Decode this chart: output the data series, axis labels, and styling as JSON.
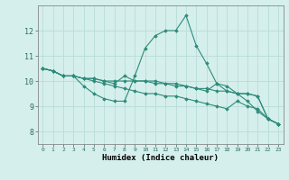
{
  "title": "",
  "xlabel": "Humidex (Indice chaleur)",
  "ylabel": "",
  "background_color": "#d5efec",
  "grid_color": "#b8ddd8",
  "line_color": "#2e8b7a",
  "xlim": [
    -0.5,
    23.5
  ],
  "ylim": [
    7.5,
    13.0
  ],
  "x_ticks": [
    0,
    1,
    2,
    3,
    4,
    5,
    6,
    7,
    8,
    9,
    10,
    11,
    12,
    13,
    14,
    15,
    16,
    17,
    18,
    19,
    20,
    21,
    22,
    23
  ],
  "y_ticks": [
    8,
    9,
    10,
    11,
    12
  ],
  "series": [
    [
      10.5,
      10.4,
      10.2,
      10.2,
      9.8,
      9.5,
      9.3,
      9.2,
      9.2,
      10.2,
      11.3,
      11.8,
      12.0,
      12.0,
      12.6,
      11.4,
      10.7,
      9.9,
      9.8,
      9.5,
      9.2,
      8.8,
      8.5,
      8.3
    ],
    [
      10.5,
      10.4,
      10.2,
      10.2,
      10.1,
      10.1,
      10.0,
      10.0,
      10.0,
      10.0,
      10.0,
      10.0,
      9.9,
      9.9,
      9.8,
      9.7,
      9.7,
      9.6,
      9.6,
      9.5,
      9.5,
      9.4,
      8.5,
      8.3
    ],
    [
      10.5,
      10.4,
      10.2,
      10.2,
      10.1,
      10.0,
      9.9,
      9.8,
      9.7,
      9.6,
      9.5,
      9.5,
      9.4,
      9.4,
      9.3,
      9.2,
      9.1,
      9.0,
      8.9,
      9.2,
      9.0,
      8.9,
      8.5,
      8.3
    ],
    [
      10.5,
      10.4,
      10.2,
      10.2,
      10.1,
      10.1,
      10.0,
      9.9,
      10.2,
      10.0,
      10.0,
      9.9,
      9.9,
      9.8,
      9.8,
      9.7,
      9.6,
      9.9,
      9.6,
      9.5,
      9.5,
      9.4,
      8.5,
      8.3
    ]
  ]
}
